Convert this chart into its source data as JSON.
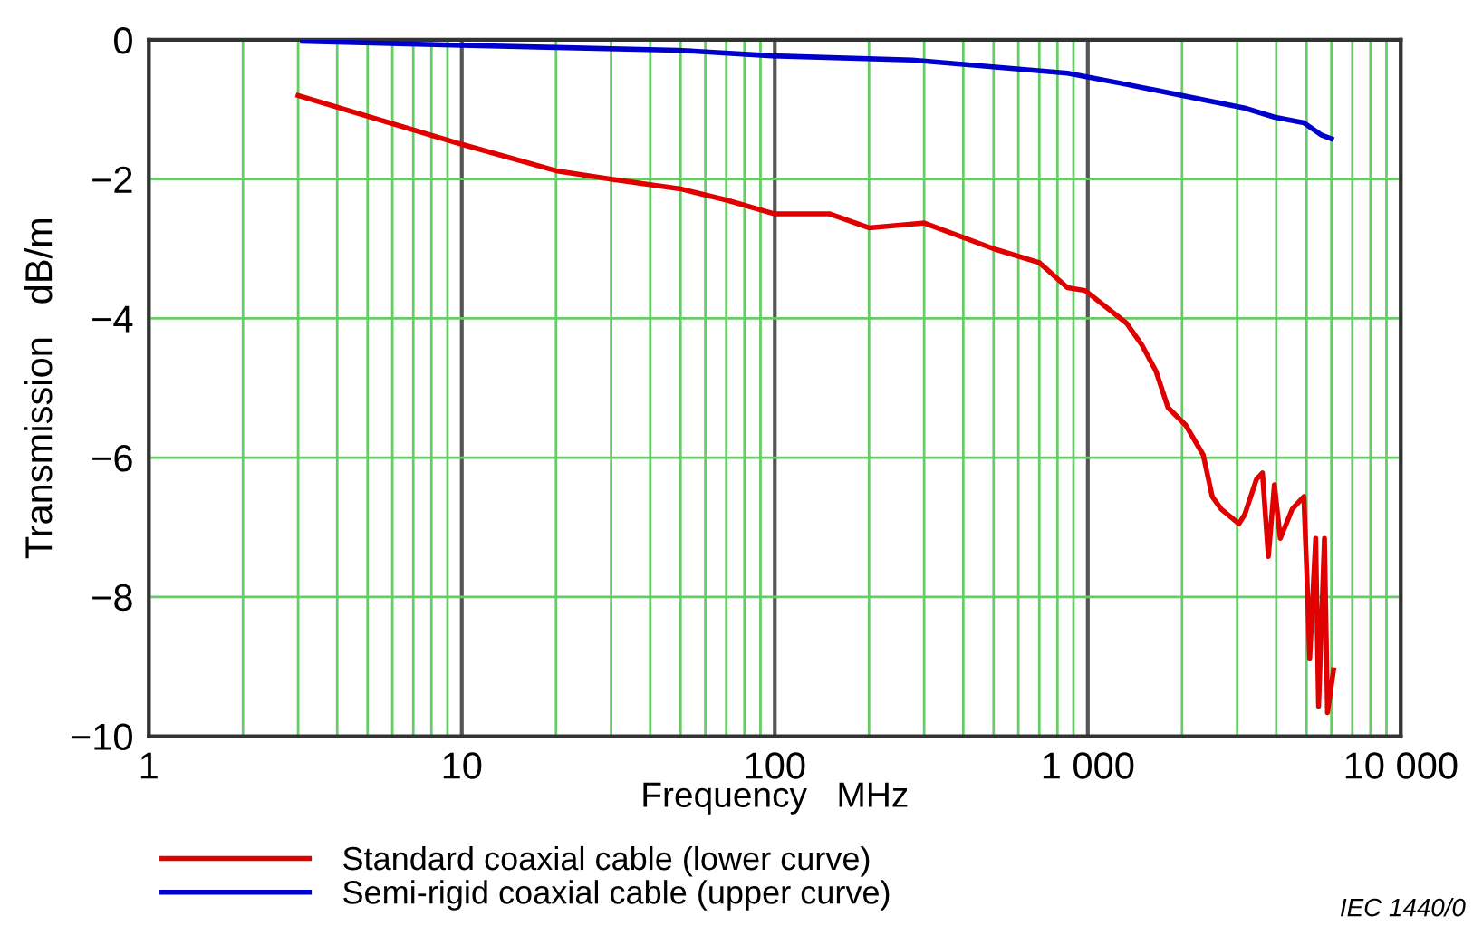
{
  "chart_data": {
    "type": "line",
    "xlabel": "Frequency   MHz",
    "ylabel": "Transmission   dB/m",
    "log": "x",
    "xlim": [
      1,
      10000
    ],
    "ylim": [
      -10,
      0
    ],
    "xticks": [
      1,
      10,
      100,
      {
        "value": 1000,
        "label": "1 000"
      },
      {
        "value": 10000,
        "label": "10 000"
      }
    ],
    "yticks": [
      -10,
      -8,
      -6,
      -4,
      -2,
      0
    ],
    "grid": true,
    "legend": "bottom",
    "marker": "none",
    "line_style": "solid",
    "annotations": [
      "IEC 1440/0"
    ],
    "series": [
      {
        "name": "Standard coaxial cable (lower curve)",
        "color": "#e00000",
        "x": [
          3,
          10,
          20,
          30,
          50,
          70,
          100,
          150,
          200,
          300,
          500,
          700,
          861,
          980,
          1330,
          1483,
          1652,
          1803,
          2052,
          2337,
          2498,
          2667,
          3040,
          3170,
          3459,
          3614,
          3774,
          3945,
          4121,
          4497,
          4900,
          5010,
          5117,
          5346,
          5461,
          5702,
          5832,
          6095
        ],
        "values": [
          -0.8,
          -1.5,
          -1.88,
          -2.0,
          -2.14,
          -2.3,
          -2.5,
          -2.5,
          -2.7,
          -2.63,
          -3.0,
          -3.2,
          -3.56,
          -3.6,
          -4.07,
          -4.37,
          -4.76,
          -5.28,
          -5.53,
          -5.96,
          -6.56,
          -6.74,
          -6.95,
          -6.82,
          -6.31,
          -6.22,
          -7.42,
          -6.39,
          -7.16,
          -6.74,
          -6.56,
          -7.68,
          -8.88,
          -7.16,
          -9.57,
          -7.16,
          -9.66,
          -9.05
        ]
      },
      {
        "name": "Semi-rigid coaxial cable (upper curve)",
        "color": "#0000cc",
        "x": [
          3.1,
          10,
          20,
          49,
          98,
          275,
          861,
          1330,
          3170,
          3945,
          4900,
          5590,
          6000
        ],
        "values": [
          -0.02,
          -0.08,
          -0.11,
          -0.15,
          -0.23,
          -0.29,
          -0.48,
          -0.64,
          -0.98,
          -1.11,
          -1.19,
          -1.37,
          -1.42
        ]
      }
    ]
  }
}
